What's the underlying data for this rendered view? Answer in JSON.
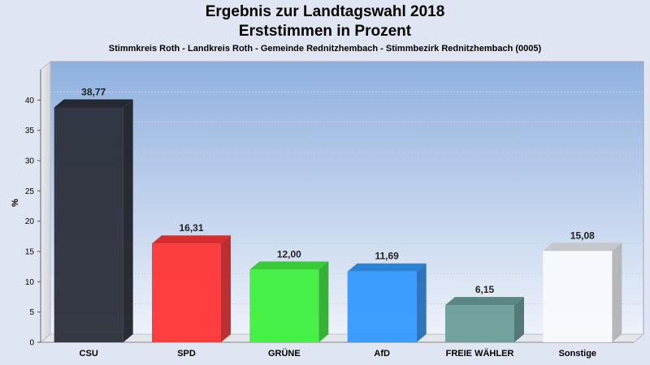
{
  "title_line1": "Ergebnis zur Landtagswahl 2018",
  "title_line2": "Erststimmen in Prozent",
  "subtitle": "Stimmkreis Roth - Landkreis Roth - Gemeinde Rednitzhembach - Stimmbezirk Rednitzhembach (0005)",
  "chart_data": {
    "type": "bar",
    "ylabel": "%",
    "ylim": [
      0,
      45
    ],
    "yticks": [
      0,
      5,
      10,
      15,
      20,
      25,
      30,
      35,
      40
    ],
    "grid": true,
    "categories": [
      "CSU",
      "SPD",
      "GRÜNE",
      "AfD",
      "FREIE WÄHLER",
      "Sonstige"
    ],
    "values": [
      38.77,
      16.31,
      12.0,
      11.69,
      6.15,
      15.08
    ],
    "value_labels": [
      "38,77",
      "16,31",
      "12,00",
      "11,69",
      "6,15",
      "15,08"
    ],
    "colors": [
      "#2b2f3b",
      "#ff3535",
      "#3ef03e",
      "#3399ff",
      "#6b9e9a",
      "#f7f9fd"
    ]
  }
}
